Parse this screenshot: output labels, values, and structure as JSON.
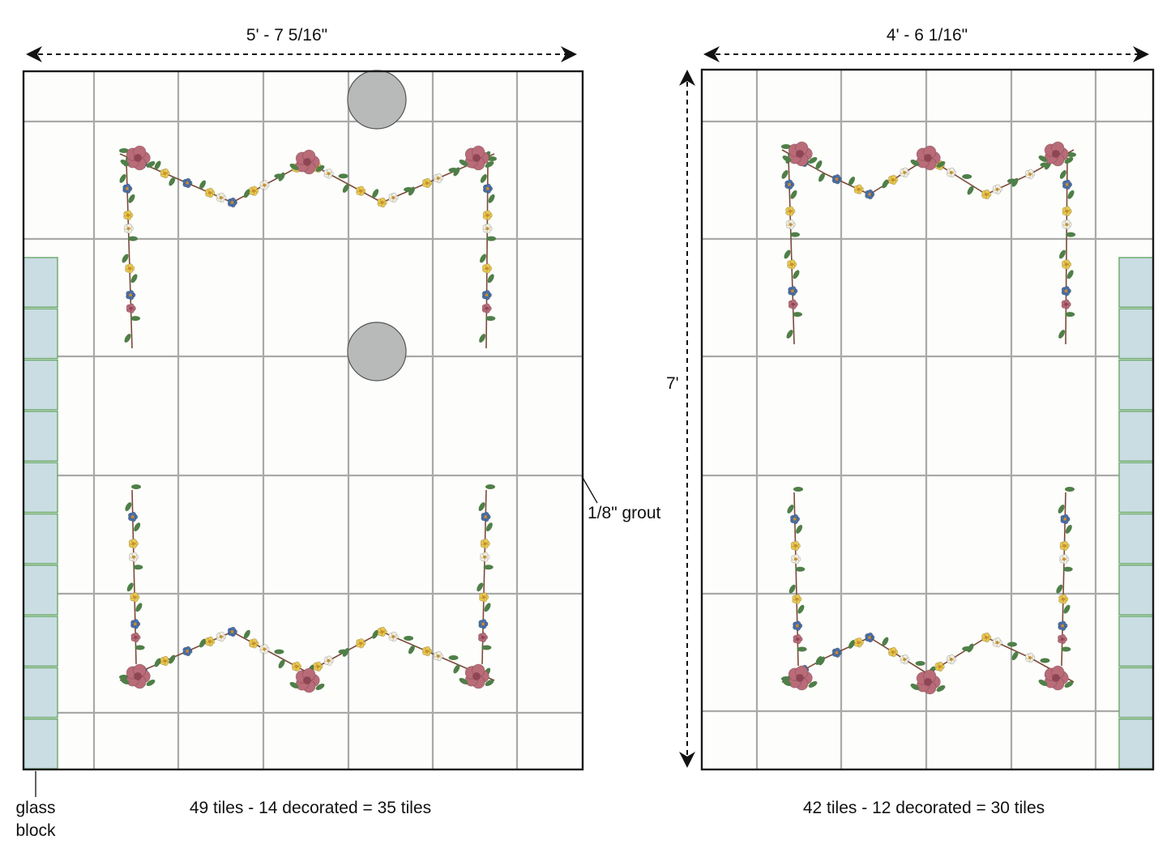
{
  "left_wall": {
    "width_label": "5' - 7 5/16\"",
    "count_label": "49 tiles - 14 decorated = 35 tiles"
  },
  "right_wall": {
    "width_label": "4' - 6 1/16\"",
    "height_label": "7'",
    "count_label": "42 tiles - 12 decorated = 30 tiles"
  },
  "annotations": {
    "grout_label": "1/8\" grout",
    "glass_block_line1": "glass",
    "glass_block_line2": "block"
  },
  "colors": {
    "tile_fill": "#fdfdfb",
    "grout": "#a9a9a9",
    "frame": "#1a1a1a",
    "glass_block_fill": "#c9dde3",
    "glass_block_edge": "#6aa86a",
    "fixture_fill": "#b8b9b9",
    "rose": "#b96b78",
    "yellow_flower": "#e9c84f",
    "blue_flower": "#4b6fa8",
    "white_flower": "#efeedf",
    "leaf": "#4f7f48",
    "stem": "#7b4b3a"
  }
}
